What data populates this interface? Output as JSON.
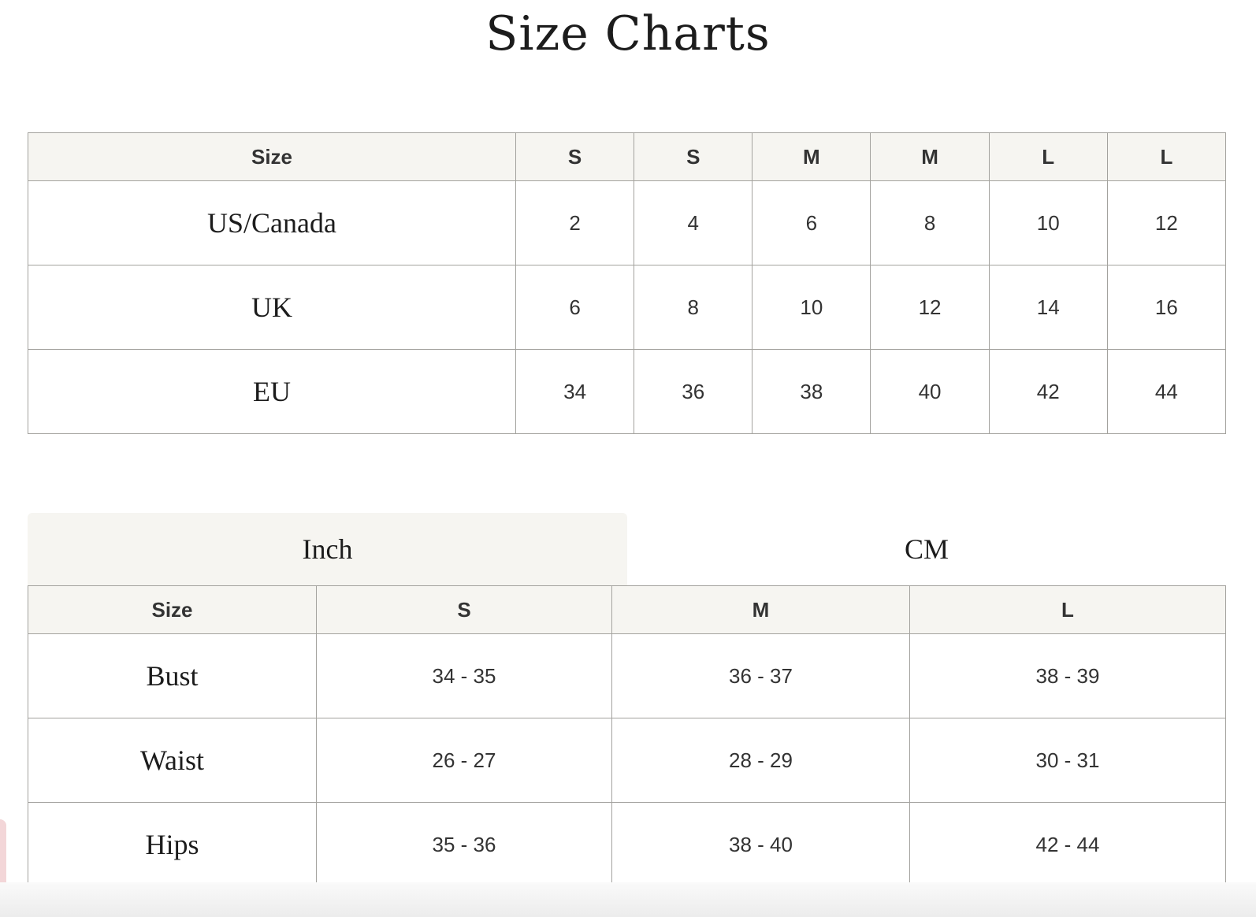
{
  "title": "Size Charts",
  "conversion_table": {
    "headers": [
      "Size",
      "S",
      "S",
      "M",
      "M",
      "L",
      "L"
    ],
    "rows": [
      {
        "label": "US/Canada",
        "values": [
          "2",
          "4",
          "6",
          "8",
          "10",
          "12"
        ]
      },
      {
        "label": "UK",
        "values": [
          "6",
          "8",
          "10",
          "12",
          "14",
          "16"
        ]
      },
      {
        "label": "EU",
        "values": [
          "34",
          "36",
          "38",
          "40",
          "42",
          "44"
        ]
      }
    ]
  },
  "unit_tabs": [
    {
      "label": "Inch",
      "active": true
    },
    {
      "label": "CM",
      "active": false
    }
  ],
  "measurement_table": {
    "headers": [
      "Size",
      "S",
      "M",
      "L"
    ],
    "rows": [
      {
        "label": "Bust",
        "values": [
          "34 - 35",
          "36 - 37",
          "38 - 39"
        ]
      },
      {
        "label": "Waist",
        "values": [
          "26 - 27",
          "28 - 29",
          "30 - 31"
        ]
      },
      {
        "label": "Hips",
        "values": [
          "35 - 36",
          "38 - 40",
          "42 - 44"
        ]
      }
    ]
  },
  "colors": {
    "header_bg": "#f6f5f1",
    "border": "#a3a29e",
    "text": "#333333"
  }
}
